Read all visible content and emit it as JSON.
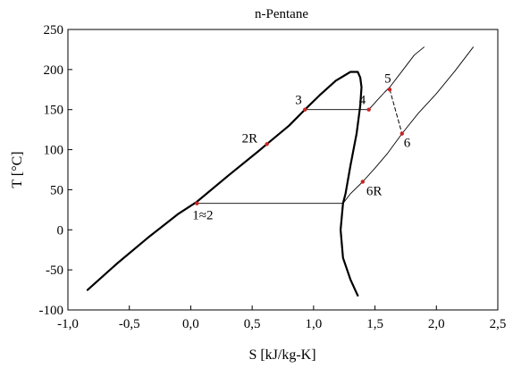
{
  "chart_data": {
    "type": "line",
    "title": "n-Pentane",
    "xlabel": "S [kJ/kg-K]",
    "ylabel": "T [°C]",
    "xlim": [
      -1.0,
      2.5
    ],
    "ylim": [
      -100,
      250
    ],
    "xticks": [
      -1.0,
      -0.5,
      0.0,
      0.5,
      1.0,
      1.5,
      2.0,
      2.5
    ],
    "xtick_labels": [
      "-1,0",
      "-0,5",
      "0,0",
      "0,5",
      "1,0",
      "1,5",
      "2,0",
      "2,5"
    ],
    "yticks": [
      -100,
      -50,
      0,
      50,
      100,
      150,
      200,
      250
    ],
    "ytick_labels": [
      "-100",
      "-50",
      "0",
      "50",
      "100",
      "150",
      "200",
      "250"
    ],
    "grid": false,
    "series": [
      {
        "style": "saturation-dome",
        "x": [
          -0.84,
          -0.6,
          -0.35,
          -0.1,
          0.05,
          0.3,
          0.55,
          0.62,
          0.8,
          0.93,
          1.05,
          1.18,
          1.3,
          1.36,
          1.38,
          1.39,
          1.38,
          1.35,
          1.3,
          1.26,
          1.24,
          1.22,
          1.24,
          1.3,
          1.36
        ],
        "y": [
          -75,
          -42,
          -10,
          20,
          35,
          67,
          98,
          107,
          130,
          150,
          168,
          186,
          197,
          197,
          190,
          178,
          155,
          120,
          80,
          45,
          33,
          0,
          -35,
          -62,
          -82
        ]
      },
      {
        "style": "isobar-high",
        "x": [
          1.45,
          1.52,
          1.58,
          1.62,
          1.72,
          1.82,
          1.9
        ],
        "y": [
          150,
          162,
          172,
          178,
          198,
          218,
          228
        ]
      },
      {
        "style": "isobar-low",
        "x": [
          1.24,
          1.3,
          1.4,
          1.5,
          1.6,
          1.72,
          1.85,
          2.0,
          2.15,
          2.3
        ],
        "y": [
          33,
          45,
          60,
          77,
          95,
          120,
          145,
          170,
          198,
          228
        ]
      },
      {
        "style": "evaporation-line",
        "x": [
          0.93,
          1.45
        ],
        "y": [
          150,
          150
        ]
      },
      {
        "style": "condensation-line",
        "x": [
          0.05,
          1.24
        ],
        "y": [
          33,
          33
        ]
      },
      {
        "style": "expansion-dashed",
        "x": [
          1.62,
          1.72
        ],
        "y": [
          175,
          120
        ]
      }
    ],
    "points": [
      {
        "label": "1≈2",
        "x": 0.05,
        "y": 33
      },
      {
        "label": "2R",
        "x": 0.62,
        "y": 107
      },
      {
        "label": "3",
        "x": 0.93,
        "y": 150
      },
      {
        "label": "4",
        "x": 1.45,
        "y": 150
      },
      {
        "label": "5",
        "x": 1.62,
        "y": 175
      },
      {
        "label": "6",
        "x": 1.72,
        "y": 120
      },
      {
        "label": "6R",
        "x": 1.4,
        "y": 60
      }
    ],
    "colors": {
      "line": "#000000",
      "marker": "#cc2222"
    }
  }
}
